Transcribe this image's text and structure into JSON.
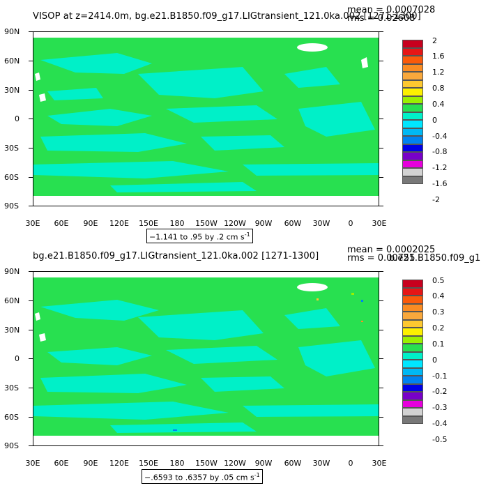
{
  "colorbar_colors": [
    "#c8001e",
    "#e61616",
    "#fb5a0a",
    "#fb8c22",
    "#f9a83c",
    "#fdc830",
    "#fdf000",
    "#9cf000",
    "#28e050",
    "#00f0c8",
    "#00e6ff",
    "#00b8f4",
    "#0082f0",
    "#0000e6",
    "#7800c8",
    "#e600dc",
    "#d2d2d2",
    "#787878"
  ],
  "panels": [
    {
      "title": "VISOP at z=2414.0m, bg.e21.B1850.f09_g17.LIGtransient_121.0ka.002 [1271-1300]",
      "mean": "mean = 0.0007028",
      "rms": "rms = 0.02608",
      "overlap_text": "",
      "contour": "−1.141 to .95 by .2 cm s",
      "contour_unit_exp": "-1",
      "colorbar_labels": [
        "2",
        "1.6",
        "1.2",
        "0.8",
        "0.4",
        "0",
        "-0.4",
        "-0.8",
        "-1.2",
        "-1.6",
        "-2"
      ]
    },
    {
      "title": "bg.e21.B1850.f09_g17.LIGtransient_121.0ka.002 [1271-1300]",
      "mean": "mean = 0.0002025",
      "rms": "rms = 0.00755",
      "overlap_text": "b.e21.B1850.f09_g1",
      "contour": "−.6593 to .6357 by .05 cm s",
      "contour_unit_exp": "-1",
      "colorbar_labels": [
        "0.5",
        "0.4",
        "0.3",
        "0.2",
        "0.1",
        "0",
        "-0.1",
        "-0.2",
        "-0.3",
        "-0.4",
        "-0.5"
      ]
    }
  ],
  "y_axis_labels": [
    "90N",
    "60N",
    "30N",
    "0",
    "30S",
    "60S",
    "90S"
  ],
  "x_axis_labels": [
    "30E",
    "60E",
    "90E",
    "120E",
    "150E",
    "180",
    "150W",
    "120W",
    "90W",
    "60W",
    "30W",
    "0",
    "30E"
  ],
  "map_colors": {
    "ocean_main": "#28e050",
    "ocean_neg": "#00f0c8",
    "land": "#ffffff"
  }
}
